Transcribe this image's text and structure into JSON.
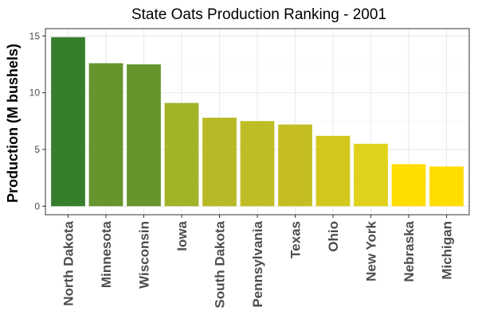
{
  "chart_data": {
    "type": "bar",
    "title": "State Oats Production Ranking - 2001",
    "xlabel": "",
    "ylabel": "Production (M bushels)",
    "categories": [
      "North Dakota",
      "Minnesota",
      "Wisconsin",
      "Iowa",
      "South Dakota",
      "Pennsylvania",
      "Texas",
      "Ohio",
      "New York",
      "Nebraska",
      "Michigan"
    ],
    "values": [
      14.9,
      12.6,
      12.5,
      9.1,
      7.8,
      7.5,
      7.2,
      6.2,
      5.5,
      3.7,
      3.5
    ],
    "colors": [
      "#367e2c",
      "#66942d",
      "#67952d",
      "#a2b328",
      "#b7ba26",
      "#bfbd25",
      "#c4be24",
      "#d2c81c",
      "#e0d21a",
      "#ffdd00",
      "#ffdd00"
    ],
    "ylim": [
      -0.75,
      15.65
    ],
    "yticks": [
      0,
      5,
      10,
      15
    ],
    "grid": true,
    "legend": "none"
  }
}
